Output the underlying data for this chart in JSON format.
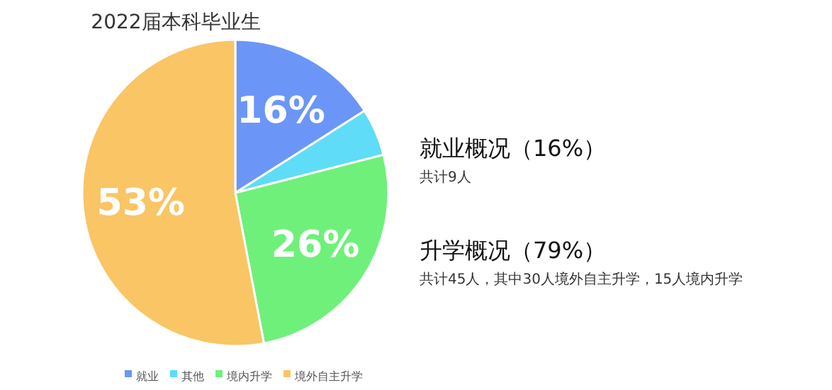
{
  "chart_data": {
    "type": "pie",
    "title": "2022届本科毕业生",
    "categories": [
      "就业",
      "其他",
      "境内升学",
      "境外自主升学"
    ],
    "values": [
      16,
      5,
      26,
      53
    ],
    "value_labels": [
      "16%",
      null,
      "26%",
      "53%"
    ],
    "colors": [
      "#6b96f7",
      "#5fdcf7",
      "#6ff07a",
      "#f9c565"
    ],
    "legend": "bottom",
    "annotations": [
      "就业概况（16%）",
      "共计9人",
      "升学概况（79%）",
      "共计45人，其中30人境外自主升学，15人境内升学"
    ]
  }
}
